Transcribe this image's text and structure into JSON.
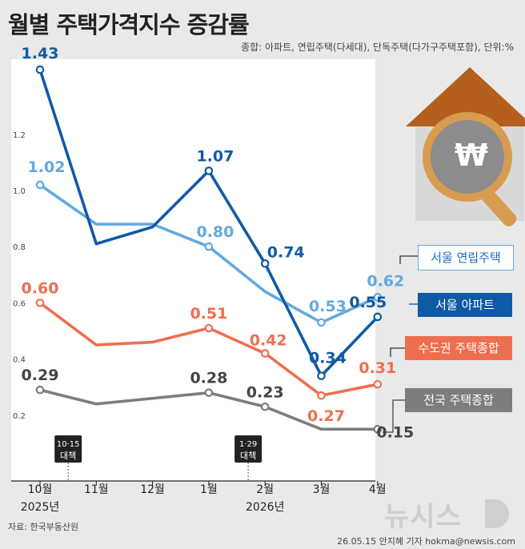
{
  "header": {
    "title": "월별 주택가격지수 증감률",
    "subtitle": "종합: 아파트, 연립주택(다세대), 단독주택(다가구주택포함), 단위:%"
  },
  "footer": {
    "source": "자료: 한국부동산원",
    "credit": "26.05.15 안지혜 기자 hokma@newsis.com",
    "watermark": "뉴시스"
  },
  "colors": {
    "seoul_villa": "#62a9e0",
    "seoul_apt": "#0f5aa6",
    "metro": "#ee6f4f",
    "national": "#7d7d7d",
    "roof": "#b55f1e",
    "lens_ring": "#d79c50"
  },
  "chart_data": {
    "type": "line",
    "categories": [
      "10월",
      "11월",
      "12월",
      "1월",
      "2월",
      "3월",
      "4월"
    ],
    "year_labels": [
      {
        "category_index": 0,
        "text": "2025년"
      },
      {
        "category_index": 4,
        "text": "2026년"
      }
    ],
    "ylim": [
      0.0,
      1.5
    ],
    "yticks": [
      {
        "value": 0.2,
        "label": "0.2"
      },
      {
        "value": 0.4,
        "label": "0.4"
      },
      {
        "value": 0.6,
        "label": "0.6"
      },
      {
        "value": 0.8,
        "label": "0.8"
      },
      {
        "value": 1.0,
        "label": "1.0"
      },
      {
        "value": 1.2,
        "label": "1.2"
      }
    ],
    "grid": false,
    "series": [
      {
        "key": "seoul_villa",
        "name": "서울 연립주택",
        "color": "#62a9e0",
        "values": [
          1.02,
          0.88,
          0.88,
          0.8,
          0.64,
          0.53,
          0.62
        ],
        "data_labels": [
          {
            "index": 0,
            "text": "1.02"
          },
          {
            "index": 3,
            "text": "0.80"
          },
          {
            "index": 5,
            "text": "0.53"
          },
          {
            "index": 6,
            "text": "0.62"
          }
        ]
      },
      {
        "key": "seoul_apt",
        "name": "서울 아파트",
        "color": "#0f5aa6",
        "values": [
          1.43,
          0.81,
          0.87,
          1.07,
          0.74,
          0.34,
          0.55
        ],
        "data_labels": [
          {
            "index": 0,
            "text": "1.43"
          },
          {
            "index": 3,
            "text": "1.07"
          },
          {
            "index": 4,
            "text": "0.74"
          },
          {
            "index": 5,
            "text": "0.34"
          },
          {
            "index": 6,
            "text": "0.55"
          }
        ]
      },
      {
        "key": "metro",
        "name": "수도권 주택종합",
        "color": "#ee6f4f",
        "values": [
          0.6,
          0.45,
          0.46,
          0.51,
          0.42,
          0.27,
          0.31
        ],
        "data_labels": [
          {
            "index": 0,
            "text": "0.60"
          },
          {
            "index": 3,
            "text": "0.51"
          },
          {
            "index": 4,
            "text": "0.42"
          },
          {
            "index": 5,
            "text": "0.27"
          },
          {
            "index": 6,
            "text": "0.31"
          }
        ]
      },
      {
        "key": "national",
        "name": "전국 주택종합",
        "color": "#7d7d7d",
        "values": [
          0.29,
          0.24,
          0.26,
          0.28,
          0.23,
          0.15,
          0.15
        ],
        "data_labels": [
          {
            "index": 0,
            "text": "0.29"
          },
          {
            "index": 3,
            "text": "0.28"
          },
          {
            "index": 4,
            "text": "0.23"
          },
          {
            "index": 6,
            "text": "0.15"
          }
        ]
      }
    ],
    "annotations": [
      {
        "category_position": 0.5,
        "lines": [
          "10·15",
          "대책"
        ]
      },
      {
        "category_position": 3.7,
        "lines": [
          "1·29",
          "대책"
        ]
      }
    ]
  }
}
